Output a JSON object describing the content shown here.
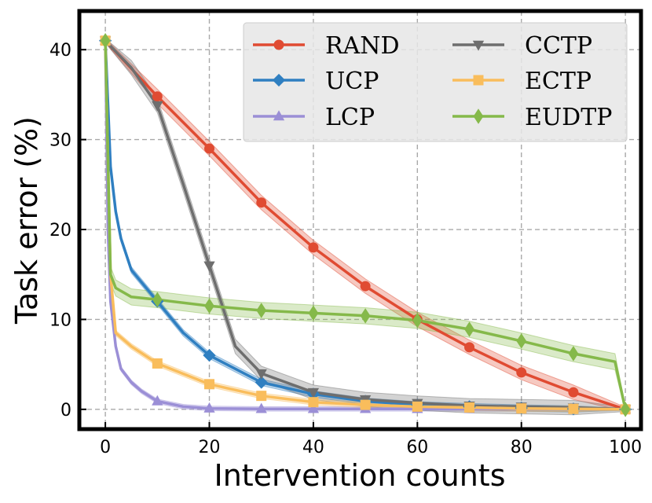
{
  "chart_data": {
    "type": "line",
    "title": "",
    "xlabel": "Intervention counts",
    "ylabel": "Task error (%)",
    "xlim": [
      -5,
      103
    ],
    "ylim": [
      -2.2,
      44.3
    ],
    "xticks": [
      0,
      20,
      40,
      60,
      80,
      100
    ],
    "yticks": [
      0,
      10,
      20,
      30,
      40
    ],
    "grid": true,
    "legend_position": "top-right",
    "series": [
      {
        "name": "RAND",
        "color": "#e04b32",
        "marker": "circle",
        "x": [
          0,
          10,
          20,
          30,
          40,
          50,
          60,
          70,
          80,
          90,
          100
        ],
        "values": [
          41,
          34.8,
          29,
          23,
          18,
          13.7,
          10,
          6.9,
          4.1,
          1.9,
          0
        ],
        "band": 0.8
      },
      {
        "name": "UCP",
        "color": "#2f7fc1",
        "marker": "diamond",
        "x": [
          0,
          1,
          2,
          3,
          5,
          10,
          15,
          20,
          30,
          40,
          50,
          60,
          70,
          80,
          90,
          100
        ],
        "values": [
          41,
          27,
          22,
          19,
          15.5,
          12,
          8.5,
          6,
          3,
          1.7,
          0.9,
          0.5,
          0.3,
          0.15,
          0.05,
          0
        ],
        "marker_x": [
          0,
          10,
          20,
          30,
          40,
          50,
          60,
          70,
          80,
          90,
          100
        ],
        "band": 0.35
      },
      {
        "name": "LCP",
        "color": "#9b8fd6",
        "marker": "triangle-up",
        "x": [
          0,
          0.5,
          1,
          2,
          3,
          5,
          7,
          10,
          15,
          20,
          30,
          40,
          50,
          60,
          70,
          80,
          90,
          100
        ],
        "values": [
          41,
          20,
          12,
          7,
          4.5,
          3,
          2,
          0.9,
          0.3,
          0.1,
          0.05,
          0.05,
          0.05,
          0.05,
          0.05,
          0.05,
          0.05,
          0
        ],
        "marker_x": [
          0,
          10,
          20,
          30,
          40,
          50,
          60,
          70,
          80,
          90,
          100
        ],
        "band": 0.25
      },
      {
        "name": "CCTP",
        "color": "#6e6e6e",
        "marker": "triangle-down",
        "x": [
          0,
          5,
          10,
          15,
          20,
          25,
          30,
          40,
          50,
          60,
          70,
          80,
          90,
          100
        ],
        "values": [
          41,
          38,
          33.8,
          25,
          16,
          7,
          4,
          1.9,
          1.1,
          0.7,
          0.4,
          0.3,
          0.2,
          0
        ],
        "marker_x": [
          0,
          10,
          20,
          30,
          40,
          50,
          60,
          70,
          80,
          90,
          100
        ],
        "band": 0.8
      },
      {
        "name": "ECTP",
        "color": "#f9bd5c",
        "marker": "square",
        "x": [
          0,
          1,
          2,
          5,
          10,
          20,
          30,
          40,
          50,
          60,
          70,
          80,
          90,
          100
        ],
        "values": [
          41,
          15,
          8.5,
          7,
          5.1,
          2.8,
          1.5,
          0.8,
          0.5,
          0.3,
          0.2,
          0.1,
          0.05,
          0
        ],
        "marker_x": [
          0,
          10,
          20,
          30,
          40,
          50,
          60,
          70,
          80,
          90,
          100
        ],
        "band": 0.3
      },
      {
        "name": "EUDTP",
        "color": "#85b94a",
        "marker": "thin-diamond",
        "x": [
          0,
          1,
          2,
          5,
          10,
          20,
          30,
          40,
          50,
          60,
          70,
          80,
          90,
          98,
          100
        ],
        "values": [
          41,
          15,
          13.5,
          12.5,
          12.2,
          11.5,
          11,
          10.7,
          10.4,
          9.9,
          8.9,
          7.6,
          6.2,
          5.3,
          0
        ],
        "marker_x": [
          0,
          10,
          20,
          30,
          40,
          50,
          60,
          70,
          80,
          90,
          100
        ],
        "band": 0.9
      }
    ]
  }
}
